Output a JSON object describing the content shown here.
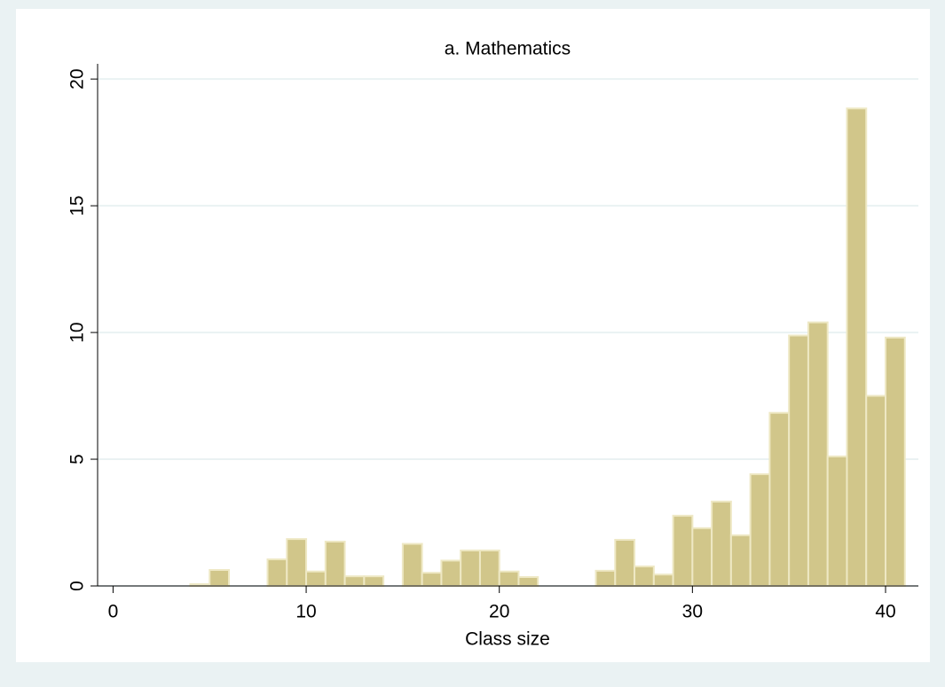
{
  "chart_data": {
    "type": "histogram",
    "title": "a. Mathematics",
    "xlabel": "Class size",
    "bins": [
      4,
      5,
      6,
      7,
      8,
      9,
      10,
      11,
      12,
      13,
      14,
      15,
      16,
      17,
      18,
      19,
      20,
      21,
      22,
      23,
      24,
      25,
      26,
      27,
      28,
      29,
      30,
      31,
      32,
      33,
      34,
      35,
      36,
      37,
      38,
      39,
      40,
      41
    ],
    "values": [
      0.07,
      0.63,
      0,
      0,
      1.05,
      1.85,
      0.57,
      1.75,
      0.38,
      0.38,
      0,
      1.66,
      0.52,
      1.0,
      1.4,
      1.4,
      0.57,
      0.35,
      0,
      0,
      0,
      0.6,
      1.82,
      0.77,
      0.45,
      2.77,
      2.28,
      3.33,
      2.0,
      4.41,
      6.83,
      9.88,
      10.4,
      5.11,
      18.84,
      7.5,
      9.8
    ],
    "color": "#d1c68a",
    "xlim": [
      -0.8,
      41.7
    ],
    "xticks": [
      0,
      10,
      20,
      30,
      40
    ],
    "ylim": [
      0,
      20.6
    ],
    "yticks": [
      0,
      5,
      10,
      15,
      20
    ],
    "grid": true
  }
}
